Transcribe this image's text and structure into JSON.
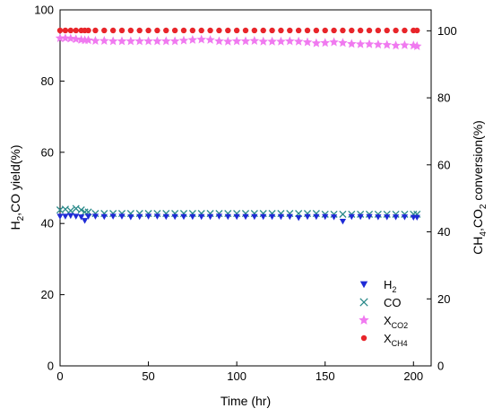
{
  "chart_data": {
    "type": "scatter",
    "xlabel": "Time (hr)",
    "ylabel_left": "H2,CO yield(%)",
    "ylabel_right": "CH4,CO2 conversion(%)",
    "xlim": [
      0,
      210
    ],
    "ylim_left": [
      0,
      100
    ],
    "ylim_right": [
      0,
      106.25
    ],
    "x_ticks": [
      "0",
      "50",
      "100",
      "150",
      "200"
    ],
    "y_ticks_left": [
      "0",
      "20",
      "40",
      "60",
      "80",
      "100"
    ],
    "y_ticks_right": [
      "0",
      "20",
      "40",
      "60",
      "80",
      "100"
    ],
    "grid": false,
    "legend_position": "bottom-right",
    "x": [
      0,
      3,
      6,
      9,
      12,
      14,
      16,
      20,
      25,
      30,
      35,
      40,
      45,
      50,
      55,
      60,
      65,
      70,
      75,
      80,
      85,
      90,
      95,
      100,
      105,
      110,
      115,
      120,
      125,
      130,
      135,
      140,
      145,
      150,
      155,
      160,
      165,
      170,
      175,
      180,
      185,
      190,
      195,
      200,
      202
    ],
    "series": [
      {
        "name": "H2",
        "name_main": "H",
        "name_sub": "2",
        "marker": "triangle-down",
        "axis": "left",
        "color": "#1f2bd6",
        "values": [
          42.0,
          42.0,
          42.2,
          42.0,
          41.8,
          40.8,
          42.0,
          42.0,
          41.9,
          42.0,
          42.0,
          41.8,
          41.9,
          42.0,
          42.0,
          41.9,
          41.9,
          41.9,
          41.9,
          41.9,
          41.9,
          42.0,
          41.9,
          41.9,
          41.9,
          41.9,
          41.9,
          41.9,
          41.9,
          41.9,
          41.6,
          41.9,
          41.9,
          41.9,
          41.8,
          40.6,
          41.9,
          41.9,
          41.9,
          41.8,
          41.8,
          41.8,
          41.8,
          41.7,
          41.7
        ]
      },
      {
        "name": "CO",
        "name_main": "CO",
        "name_sub": "",
        "marker": "x",
        "axis": "left",
        "color": "#2a8a8a",
        "values": [
          43.8,
          44.0,
          43.6,
          44.2,
          43.8,
          43.2,
          43.2,
          42.8,
          42.8,
          42.8,
          42.8,
          42.8,
          42.8,
          42.8,
          42.8,
          42.8,
          42.8,
          42.8,
          42.8,
          42.8,
          42.8,
          42.8,
          42.8,
          42.8,
          42.8,
          42.8,
          42.8,
          42.8,
          42.8,
          42.8,
          42.8,
          42.8,
          42.8,
          42.6,
          42.6,
          42.6,
          42.6,
          42.6,
          42.6,
          42.6,
          42.6,
          42.6,
          42.6,
          42.6,
          42.6
        ]
      },
      {
        "name": "XCO2",
        "name_main": "X",
        "name_sub": "CO2",
        "marker": "star",
        "axis": "right",
        "color": "#f07af0",
        "values": [
          97.8,
          97.8,
          97.7,
          97.5,
          97.3,
          97.2,
          97.2,
          97.0,
          97.0,
          96.9,
          96.9,
          96.9,
          96.9,
          96.9,
          96.9,
          96.9,
          96.9,
          97.1,
          97.3,
          97.4,
          97.3,
          96.9,
          96.8,
          96.9,
          96.9,
          97.0,
          96.8,
          96.8,
          96.8,
          96.9,
          96.8,
          96.6,
          96.3,
          96.4,
          96.6,
          96.4,
          96.1,
          96.0,
          96.0,
          95.9,
          95.8,
          95.6,
          95.7,
          95.6,
          95.4
        ]
      },
      {
        "name": "XCH4",
        "name_main": "X",
        "name_sub": "CH4",
        "marker": "circle",
        "axis": "right",
        "color": "#e8252a",
        "values": [
          100.1,
          100.1,
          100.1,
          100.1,
          100.1,
          100.1,
          100.1,
          100.1,
          100.1,
          100.1,
          100.1,
          100.1,
          100.1,
          100.1,
          100.1,
          100.1,
          100.1,
          100.1,
          100.1,
          100.1,
          100.1,
          100.1,
          100.1,
          100.1,
          100.1,
          100.1,
          100.1,
          100.1,
          100.1,
          100.1,
          100.1,
          100.1,
          100.1,
          100.1,
          100.1,
          100.1,
          100.1,
          100.1,
          100.1,
          100.1,
          100.1,
          100.1,
          100.1,
          100.1,
          100.1
        ]
      }
    ]
  }
}
